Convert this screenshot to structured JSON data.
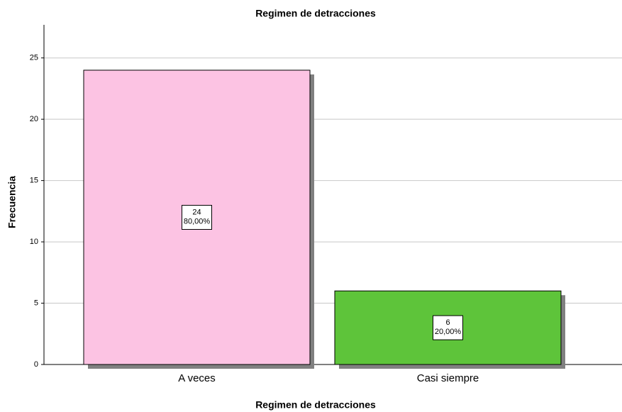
{
  "chart_data": {
    "type": "bar",
    "title": "Regimen de detracciones",
    "x_label": "Regimen de detracciones",
    "y_label": "Frecuencia",
    "categories": [
      "A veces",
      "Casi siempre"
    ],
    "values": [
      24,
      6
    ],
    "percent_labels": [
      "80,00%",
      "20,00%"
    ],
    "colors": [
      "#fcc3e3",
      "#5ec43a"
    ],
    "ylim": [
      0,
      27.7
    ],
    "yticks": [
      0,
      5,
      10,
      15,
      20,
      25
    ],
    "grid": true
  }
}
